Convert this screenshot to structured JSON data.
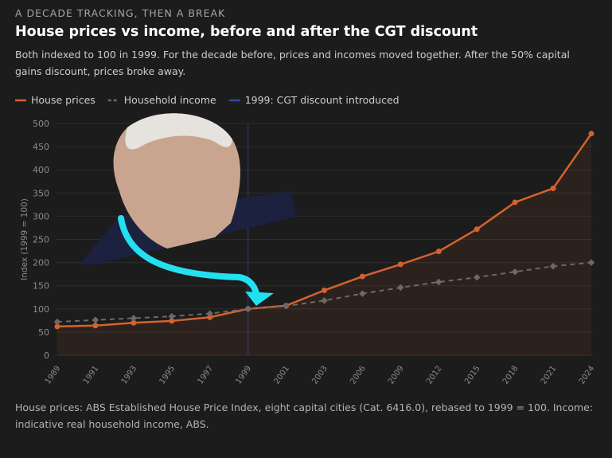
{
  "chart_data": {
    "type": "line",
    "eyebrow": "A DECADE TRACKING, THEN A BREAK",
    "title": "House prices vs income, before and after the CGT discount",
    "subtitle": "Both indexed to 100 in 1999. For the decade before, prices and incomes moved together. After the 50% capital gains discount, prices broke away.",
    "footnote": "House prices: ABS Established House Price Index, eight capital cities (Cat. 6416.0), rebased to 1999 = 100. Income: indicative real household income, ABS.",
    "ylabel": "Index (1999 = 100)",
    "categories": [
      "1989",
      "1991",
      "1993",
      "1995",
      "1997",
      "1999",
      "2001",
      "2003",
      "2006",
      "2009",
      "2012",
      "2015",
      "2018",
      "2021",
      "2024"
    ],
    "series": [
      {
        "name": "House prices",
        "color": "#d4622f",
        "values": [
          62,
          64,
          70,
          74,
          82,
          100,
          107,
          140,
          170,
          196,
          224,
          272,
          330,
          360,
          478
        ]
      },
      {
        "name": "Household income",
        "color": "#6e6964",
        "values": [
          72,
          76,
          80,
          84,
          90,
          100,
          106,
          118,
          133,
          146,
          158,
          168,
          180,
          192,
          200
        ]
      }
    ],
    "annotation": {
      "label": "1999: CGT discount introduced",
      "x": "1999",
      "color": "#2f4aa0"
    },
    "ylim": [
      0,
      500
    ],
    "yticks": [
      0,
      50,
      100,
      150,
      200,
      250,
      300,
      350,
      400,
      450,
      500
    ],
    "grid": true
  }
}
